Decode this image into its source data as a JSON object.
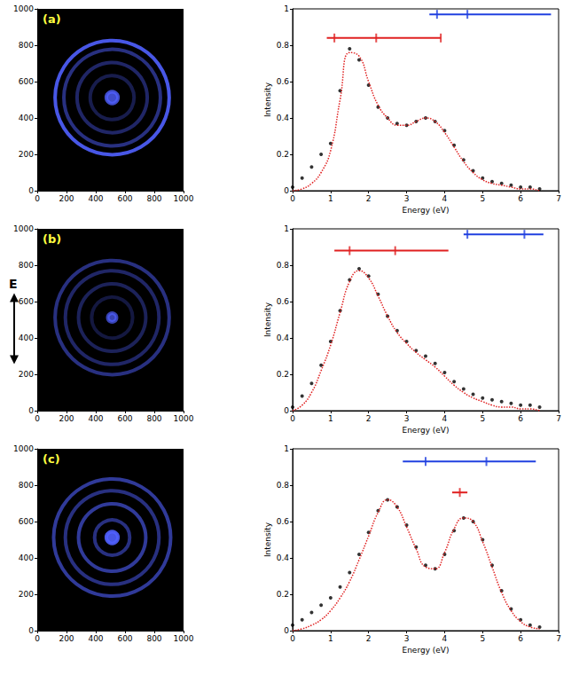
{
  "polarization": "E",
  "chart_data": [
    {
      "type": "image",
      "label": "(a)",
      "xlim": [
        0,
        1000
      ],
      "xticks": [
        0,
        200,
        400,
        600,
        800,
        1000
      ],
      "ylim": [
        0,
        1000
      ],
      "yticks": [
        0,
        200,
        400,
        600,
        800,
        1000
      ],
      "center": [
        512,
        512
      ],
      "color": "#5060ff",
      "rings": [
        {
          "radius": 390,
          "intensity": 0.9
        },
        {
          "radius": 330,
          "intensity": 0.5
        },
        {
          "radius": 240,
          "intensity": 0.4
        },
        {
          "radius": 150,
          "intensity": 0.3
        },
        {
          "radius": 40,
          "intensity": 0.8
        }
      ]
    },
    {
      "type": "line",
      "xlabel": "Energy (eV)",
      "ylabel": "Intensity",
      "xlim": [
        0,
        7
      ],
      "xticks": [
        0,
        1,
        2,
        3,
        4,
        5,
        6,
        7
      ],
      "ylim": [
        0,
        1
      ],
      "yticks": [
        0,
        0.2,
        0.4,
        0.6,
        0.8,
        1
      ],
      "x": [
        0,
        0.25,
        0.5,
        0.75,
        1,
        1.25,
        1.5,
        1.75,
        2,
        2.25,
        2.5,
        2.75,
        3,
        3.25,
        3.5,
        3.75,
        4,
        4.25,
        4.5,
        4.75,
        5,
        5.25,
        5.5,
        5.75,
        6,
        6.25,
        6.5
      ],
      "series": [
        {
          "type": "scatter",
          "color": "#000000",
          "marker": "circle",
          "values": [
            0.02,
            0.07,
            0.13,
            0.2,
            0.26,
            0.55,
            0.78,
            0.72,
            0.58,
            0.46,
            0.4,
            0.37,
            0.36,
            0.38,
            0.4,
            0.38,
            0.33,
            0.25,
            0.17,
            0.11,
            0.07,
            0.05,
            0.04,
            0.03,
            0.02,
            0.02,
            0.01
          ]
        },
        {
          "type": "line",
          "color": "#e02020",
          "line_style": "dotted",
          "values": [
            0.0,
            0.01,
            0.04,
            0.1,
            0.22,
            0.5,
            0.76,
            0.74,
            0.6,
            0.47,
            0.4,
            0.36,
            0.36,
            0.38,
            0.4,
            0.38,
            0.32,
            0.24,
            0.16,
            0.1,
            0.06,
            0.04,
            0.03,
            0.02,
            0.01,
            0.01,
            0.0
          ]
        }
      ],
      "combs": [
        {
          "color": "#e02020",
          "y": 0.84,
          "start": 0.9,
          "end": 3.9,
          "ticks": [
            1.1,
            2.2,
            3.9
          ]
        },
        {
          "color": "#2040e0",
          "y": 0.97,
          "start": 3.6,
          "end": 6.8,
          "ticks": [
            3.8,
            4.6
          ]
        }
      ]
    },
    {
      "type": "image",
      "label": "(b)",
      "xlim": [
        0,
        1000
      ],
      "xticks": [
        0,
        200,
        400,
        600,
        800,
        1000
      ],
      "ylim": [
        0,
        1000
      ],
      "yticks": [
        0,
        200,
        400,
        600,
        800,
        1000
      ],
      "center": [
        512,
        512
      ],
      "color": "#5060ff",
      "rings": [
        {
          "radius": 390,
          "intensity": 0.5
        },
        {
          "radius": 320,
          "intensity": 0.4
        },
        {
          "radius": 230,
          "intensity": 0.35
        },
        {
          "radius": 140,
          "intensity": 0.25
        },
        {
          "radius": 30,
          "intensity": 0.7
        }
      ]
    },
    {
      "type": "line",
      "xlabel": "Energy (eV)",
      "ylabel": "Intensity",
      "xlim": [
        0,
        7
      ],
      "xticks": [
        0,
        1,
        2,
        3,
        4,
        5,
        6,
        7
      ],
      "ylim": [
        0,
        1
      ],
      "yticks": [
        0,
        0.2,
        0.4,
        0.6,
        0.8,
        1
      ],
      "x": [
        0,
        0.25,
        0.5,
        0.75,
        1,
        1.25,
        1.5,
        1.75,
        2,
        2.25,
        2.5,
        2.75,
        3,
        3.25,
        3.5,
        3.75,
        4,
        4.25,
        4.5,
        4.75,
        5,
        5.25,
        5.5,
        5.75,
        6,
        6.25,
        6.5
      ],
      "series": [
        {
          "type": "scatter",
          "color": "#000000",
          "marker": "circle",
          "values": [
            0.02,
            0.08,
            0.15,
            0.25,
            0.38,
            0.55,
            0.72,
            0.78,
            0.74,
            0.64,
            0.52,
            0.44,
            0.38,
            0.33,
            0.3,
            0.26,
            0.21,
            0.16,
            0.12,
            0.09,
            0.07,
            0.06,
            0.05,
            0.04,
            0.03,
            0.03,
            0.02
          ]
        },
        {
          "type": "line",
          "color": "#e02020",
          "line_style": "dotted",
          "values": [
            0.0,
            0.03,
            0.1,
            0.22,
            0.36,
            0.54,
            0.71,
            0.77,
            0.73,
            0.63,
            0.52,
            0.43,
            0.37,
            0.32,
            0.28,
            0.24,
            0.19,
            0.14,
            0.1,
            0.07,
            0.05,
            0.03,
            0.02,
            0.02,
            0.01,
            0.01,
            0.0
          ]
        }
      ],
      "combs": [
        {
          "color": "#e02020",
          "y": 0.88,
          "start": 1.1,
          "end": 4.1,
          "ticks": [
            1.5,
            2.7
          ]
        },
        {
          "color": "#2040e0",
          "y": 0.97,
          "start": 4.5,
          "end": 6.6,
          "ticks": [
            4.6,
            6.1
          ]
        }
      ]
    },
    {
      "type": "image",
      "label": "(c)",
      "xlim": [
        0,
        1000
      ],
      "xticks": [
        0,
        200,
        400,
        600,
        800,
        1000
      ],
      "ylim": [
        0,
        1000
      ],
      "yticks": [
        0,
        200,
        400,
        600,
        800,
        1000
      ],
      "center": [
        512,
        512
      ],
      "color": "#5060ff",
      "rings": [
        {
          "radius": 400,
          "intensity": 0.6
        },
        {
          "radius": 320,
          "intensity": 0.5
        },
        {
          "radius": 230,
          "intensity": 0.6
        },
        {
          "radius": 120,
          "intensity": 0.5
        },
        {
          "radius": 40,
          "intensity": 0.9
        }
      ]
    },
    {
      "type": "line",
      "xlabel": "Energy (eV)",
      "ylabel": "Intensity",
      "xlim": [
        0,
        7
      ],
      "xticks": [
        0,
        1,
        2,
        3,
        4,
        5,
        6,
        7
      ],
      "ylim": [
        0,
        1
      ],
      "yticks": [
        0,
        0.2,
        0.4,
        0.6,
        0.8,
        1
      ],
      "x": [
        0,
        0.25,
        0.5,
        0.75,
        1,
        1.25,
        1.5,
        1.75,
        2,
        2.25,
        2.5,
        2.75,
        3,
        3.25,
        3.5,
        3.75,
        4,
        4.25,
        4.5,
        4.75,
        5,
        5.25,
        5.5,
        5.75,
        6,
        6.25,
        6.5
      ],
      "series": [
        {
          "type": "scatter",
          "color": "#000000",
          "marker": "circle",
          "values": [
            0.03,
            0.06,
            0.1,
            0.14,
            0.18,
            0.24,
            0.32,
            0.42,
            0.54,
            0.66,
            0.72,
            0.68,
            0.58,
            0.46,
            0.36,
            0.34,
            0.42,
            0.55,
            0.62,
            0.6,
            0.5,
            0.36,
            0.22,
            0.12,
            0.06,
            0.03,
            0.02
          ]
        },
        {
          "type": "line",
          "color": "#e02020",
          "line_style": "dotted",
          "values": [
            0.0,
            0.01,
            0.03,
            0.06,
            0.11,
            0.18,
            0.27,
            0.39,
            0.52,
            0.65,
            0.72,
            0.68,
            0.57,
            0.45,
            0.35,
            0.34,
            0.43,
            0.56,
            0.62,
            0.6,
            0.49,
            0.35,
            0.21,
            0.11,
            0.05,
            0.02,
            0.01
          ]
        }
      ],
      "combs": [
        {
          "color": "#2040e0",
          "y": 0.93,
          "start": 2.9,
          "end": 6.4,
          "ticks": [
            3.5,
            5.1
          ]
        },
        {
          "color": "#e02020",
          "y": 0.76,
          "start": 4.2,
          "end": 4.6,
          "ticks": [
            4.4
          ]
        }
      ]
    }
  ]
}
